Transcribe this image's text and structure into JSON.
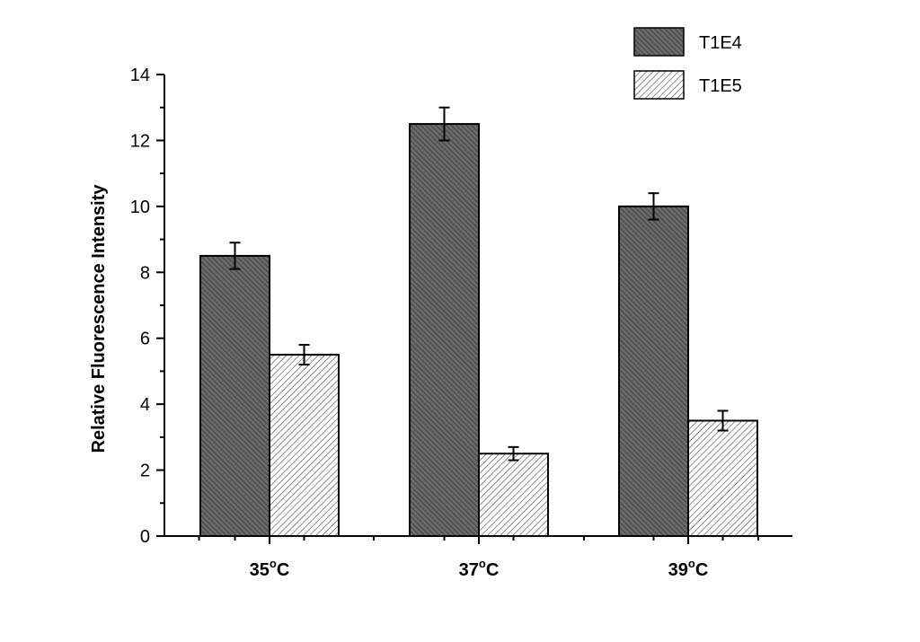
{
  "chart_data": {
    "type": "bar",
    "title": "",
    "xlabel": "",
    "ylabel": "Relative Fluorescence Intensity",
    "ylim": [
      0,
      14
    ],
    "yticks": [
      "0",
      "2",
      "4",
      "6",
      "8",
      "10",
      "12",
      "14"
    ],
    "categories": [
      {
        "base": "35",
        "sup": "o",
        "unit": "C"
      },
      {
        "base": "37",
        "sup": "o",
        "unit": "C"
      },
      {
        "base": "39",
        "sup": "o",
        "unit": "C"
      }
    ],
    "series": [
      {
        "name": "T1E4",
        "values": [
          8.5,
          12.5,
          10.0
        ],
        "errors": [
          0.4,
          0.5,
          0.4
        ],
        "color": "#6b6b6b",
        "hatch": "dense-diagonal"
      },
      {
        "name": "T1E5",
        "values": [
          5.5,
          2.5,
          3.5
        ],
        "errors": [
          0.3,
          0.2,
          0.3
        ],
        "color": "#ffffff",
        "hatch": "sparse-diagonal"
      }
    ],
    "legend": "top-right",
    "grid": false
  }
}
